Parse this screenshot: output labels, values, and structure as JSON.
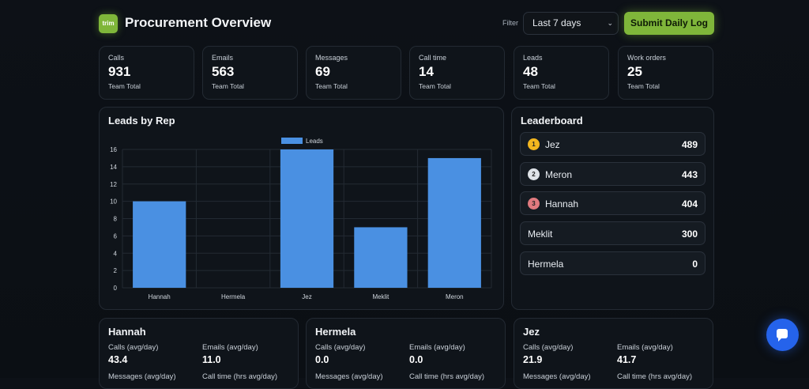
{
  "app": {
    "logo_text": "trim",
    "title": "Procurement Overview"
  },
  "filter": {
    "label": "Filter",
    "selected": "Last 7 days",
    "chevron": "⌄"
  },
  "submit_label": "Submit Daily Log",
  "stats": [
    {
      "label": "Calls",
      "value": "931",
      "sub": "Team Total"
    },
    {
      "label": "Emails",
      "value": "563",
      "sub": "Team Total"
    },
    {
      "label": "Messages",
      "value": "69",
      "sub": "Team Total"
    },
    {
      "label": "Call time",
      "value": "14",
      "sub": "Team Total"
    },
    {
      "label": "Leads",
      "value": "48",
      "sub": "Team Total"
    },
    {
      "label": "Work orders",
      "value": "25",
      "sub": "Team Total"
    }
  ],
  "chart_panel": {
    "title": "Leads by Rep"
  },
  "chart_data": {
    "type": "bar",
    "title": "",
    "categories": [
      "Hannah",
      "Hermela",
      "Jez",
      "Meklit",
      "Meron"
    ],
    "series": [
      {
        "name": "Leads",
        "values": [
          10,
          0,
          16,
          7,
          15
        ],
        "color": "#4a90e2"
      }
    ],
    "ylim": [
      0,
      16
    ],
    "yticks": [
      0,
      2,
      4,
      6,
      8,
      10,
      12,
      14,
      16
    ],
    "grid": true,
    "legend": "top-center"
  },
  "leaderboard": {
    "title": "Leaderboard",
    "rows": [
      {
        "rank": "1",
        "name": "Jez",
        "score": "489",
        "badge_color": "#f3b61f"
      },
      {
        "rank": "2",
        "name": "Meron",
        "score": "443",
        "badge_color": "#dfe3e8"
      },
      {
        "rank": "3",
        "name": "Hannah",
        "score": "404",
        "badge_color": "#e07a7f"
      },
      {
        "rank": "",
        "name": "Meklit",
        "score": "300"
      },
      {
        "rank": "",
        "name": "Hermela",
        "score": "0"
      }
    ]
  },
  "rep_cards": [
    {
      "name": "Hannah",
      "m1_label": "Calls (avg/day)",
      "m1_value": "43.4",
      "m2_label": "Emails (avg/day)",
      "m2_value": "11.0",
      "m3_label": "Messages (avg/day)",
      "m4_label": "Call time (hrs avg/day)"
    },
    {
      "name": "Hermela",
      "m1_label": "Calls (avg/day)",
      "m1_value": "0.0",
      "m2_label": "Emails (avg/day)",
      "m2_value": "0.0",
      "m3_label": "Messages (avg/day)",
      "m4_label": "Call time (hrs avg/day)"
    },
    {
      "name": "Jez",
      "m1_label": "Calls (avg/day)",
      "m1_value": "21.9",
      "m2_label": "Emails (avg/day)",
      "m2_value": "41.7",
      "m3_label": "Messages (avg/day)",
      "m4_label": "Call time (hrs avg/day)"
    }
  ],
  "colors": {
    "accent": "#7fb63a",
    "bar": "#4a90e2",
    "chat": "#2563eb"
  },
  "chat": {
    "icon": "chat-bubble-icon"
  }
}
